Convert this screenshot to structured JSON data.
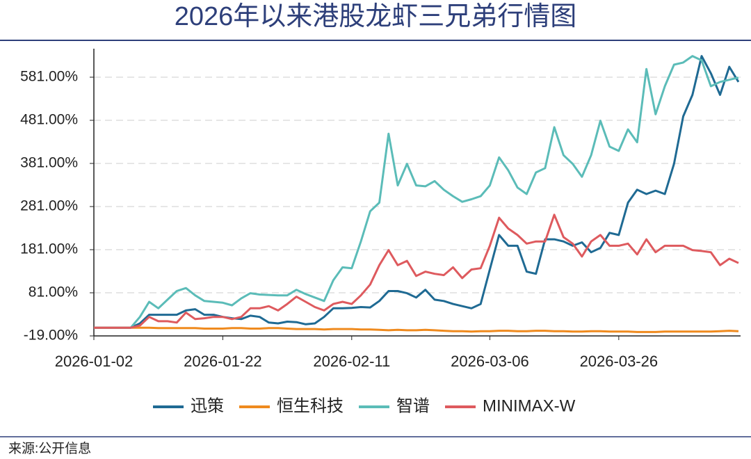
{
  "chart_data": {
    "type": "line",
    "title": "2026年以来港股龙虾三兄弟行情图",
    "source": "来源:公开信息",
    "categories": [
      "2026-01-02",
      null,
      null,
      null,
      null,
      null,
      null,
      null,
      null,
      null,
      null,
      null,
      null,
      null,
      "2026-01-22",
      null,
      null,
      null,
      null,
      null,
      null,
      null,
      null,
      null,
      null,
      null,
      null,
      null,
      "2026-02-11",
      null,
      null,
      null,
      null,
      null,
      null,
      null,
      null,
      null,
      null,
      null,
      null,
      null,
      null,
      "2026-03-06",
      null,
      null,
      null,
      null,
      null,
      null,
      null,
      null,
      null,
      null,
      null,
      null,
      null,
      "2026-03-26",
      null,
      null,
      null,
      null,
      null,
      null,
      null,
      null,
      null,
      null,
      null,
      null,
      null
    ],
    "series": [
      {
        "name": "迅策",
        "color": "#1f6a93",
        "values": [
          0,
          0,
          0,
          0,
          0,
          10,
          30,
          30,
          30,
          30,
          40,
          43,
          30,
          30,
          25,
          22,
          20,
          28,
          25,
          12,
          10,
          14,
          13,
          8,
          10,
          25,
          45,
          45,
          46,
          48,
          47,
          62,
          85,
          85,
          80,
          70,
          88,
          65,
          62,
          55,
          50,
          45,
          55,
          135,
          215,
          190,
          190,
          130,
          125,
          205,
          205,
          200,
          190,
          198,
          175,
          185,
          220,
          215,
          290,
          320,
          310,
          318,
          310,
          380,
          490,
          540,
          630,
          590,
          540,
          605,
          570
        ]
      },
      {
        "name": "恒生科技",
        "color": "#ef8a1e",
        "values": [
          0,
          0,
          0,
          0,
          0,
          0,
          0,
          -1,
          -1,
          -1,
          -1,
          -1,
          -2,
          -2,
          -2,
          -1,
          -1,
          -2,
          -2,
          -1,
          -1,
          -2,
          -3,
          -3,
          -3,
          -4,
          -3,
          -3,
          -3,
          -4,
          -4,
          -5,
          -6,
          -5,
          -6,
          -6,
          -5,
          -6,
          -7,
          -8,
          -8,
          -9,
          -8,
          -8,
          -7,
          -7,
          -8,
          -8,
          -7,
          -7,
          -8,
          -8,
          -9,
          -9,
          -8,
          -8,
          -9,
          -9,
          -9,
          -10,
          -10,
          -10,
          -9,
          -9,
          -9,
          -9,
          -9,
          -9,
          -8,
          -7,
          -8
        ]
      },
      {
        "name": "智谱",
        "color": "#5bbcb8",
        "values": [
          0,
          0,
          0,
          0,
          0,
          25,
          60,
          45,
          65,
          85,
          92,
          75,
          62,
          60,
          58,
          52,
          68,
          80,
          77,
          76,
          75,
          75,
          88,
          78,
          70,
          62,
          110,
          140,
          138,
          200,
          270,
          290,
          450,
          330,
          380,
          330,
          328,
          340,
          320,
          305,
          292,
          298,
          305,
          330,
          395,
          365,
          325,
          310,
          360,
          370,
          465,
          400,
          380,
          350,
          400,
          480,
          420,
          410,
          460,
          430,
          600,
          495,
          560,
          610,
          615,
          630,
          620,
          560,
          570,
          575,
          580
        ]
      },
      {
        "name": "MINIMAX-W",
        "color": "#de5a5e",
        "values": [
          0,
          0,
          0,
          0,
          0,
          5,
          25,
          15,
          15,
          12,
          35,
          20,
          22,
          25,
          25,
          20,
          25,
          45,
          45,
          50,
          40,
          55,
          72,
          60,
          48,
          40,
          55,
          60,
          55,
          75,
          100,
          145,
          180,
          145,
          155,
          120,
          130,
          125,
          122,
          140,
          115,
          135,
          138,
          190,
          255,
          230,
          215,
          195,
          200,
          200,
          262,
          210,
          195,
          165,
          200,
          215,
          190,
          190,
          195,
          170,
          205,
          175,
          190,
          190,
          190,
          180,
          178,
          175,
          145,
          160,
          150
        ]
      }
    ],
    "ylim": [
      -19,
      631
    ],
    "yticks": [
      {
        "value": -19,
        "label": "-19.00%"
      },
      {
        "value": 81,
        "label": "81.00%"
      },
      {
        "value": 181,
        "label": "181.00%"
      },
      {
        "value": 281,
        "label": "281.00%"
      },
      {
        "value": 381,
        "label": "381.00%"
      },
      {
        "value": 481,
        "label": "481.00%"
      },
      {
        "value": 581,
        "label": "581.00%"
      }
    ],
    "grid": true,
    "legend": "bottom"
  }
}
